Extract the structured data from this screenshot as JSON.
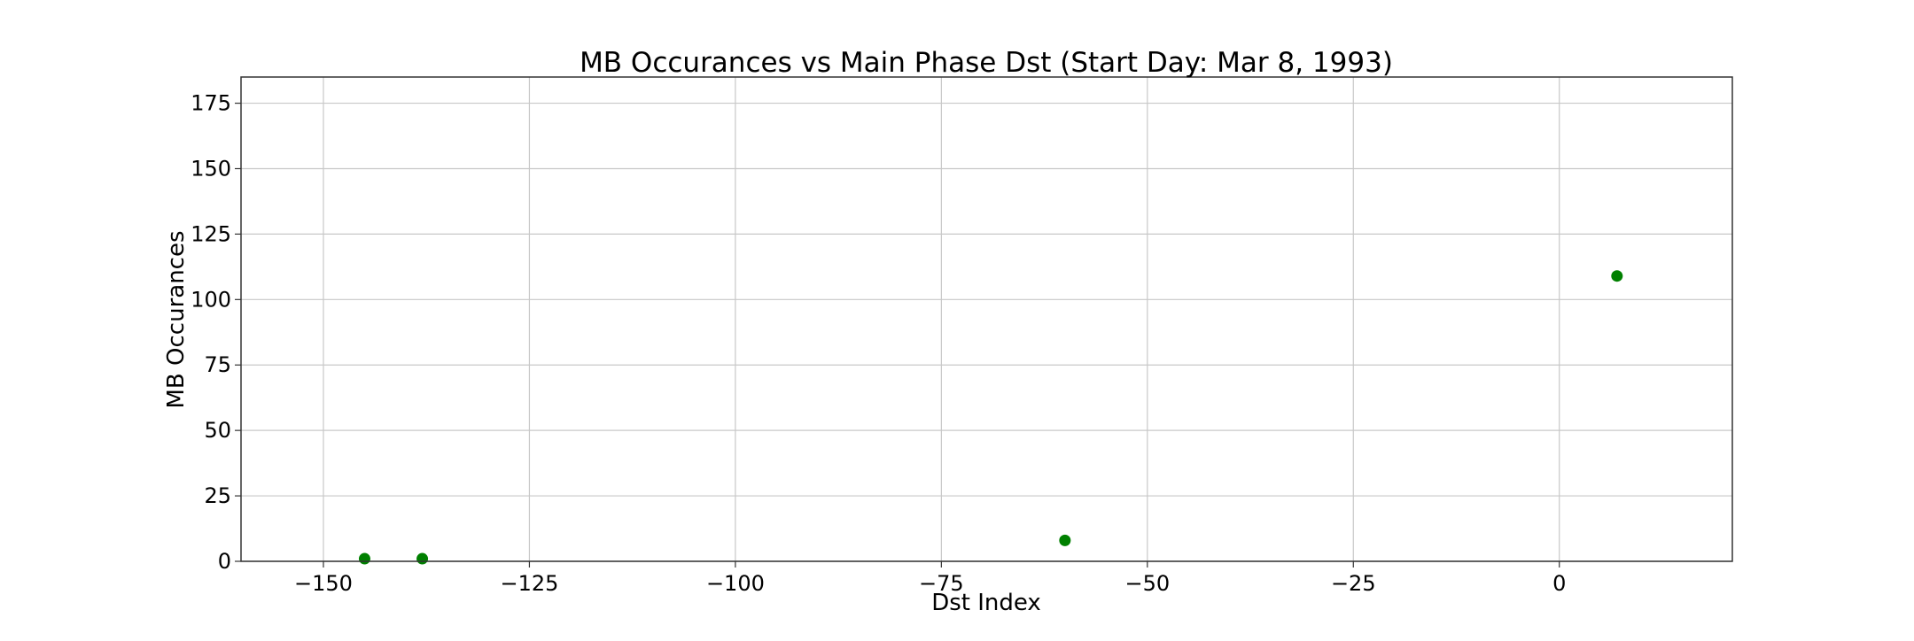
{
  "chart_data": {
    "type": "scatter",
    "title": "MB Occurances vs Main Phase Dst (Start Day: Mar 8, 1993)",
    "xlabel": "Dst Index",
    "ylabel": "MB Occurances",
    "xlim": [
      -160,
      21
    ],
    "ylim": [
      0,
      185
    ],
    "xticks": [
      -150,
      -125,
      -100,
      -75,
      -50,
      -25,
      0
    ],
    "xtick_labels": [
      "−150",
      "−125",
      "−100",
      "−75",
      "−50",
      "−25",
      "0"
    ],
    "yticks": [
      0,
      25,
      50,
      75,
      100,
      125,
      150,
      175
    ],
    "ytick_labels": [
      "0",
      "25",
      "50",
      "75",
      "100",
      "125",
      "150",
      "175"
    ],
    "grid": true,
    "legend": false,
    "series": [
      {
        "color": "#008000",
        "x": [
          -145,
          -138,
          -60,
          7
        ],
        "y": [
          1,
          1,
          8,
          109
        ]
      }
    ]
  }
}
